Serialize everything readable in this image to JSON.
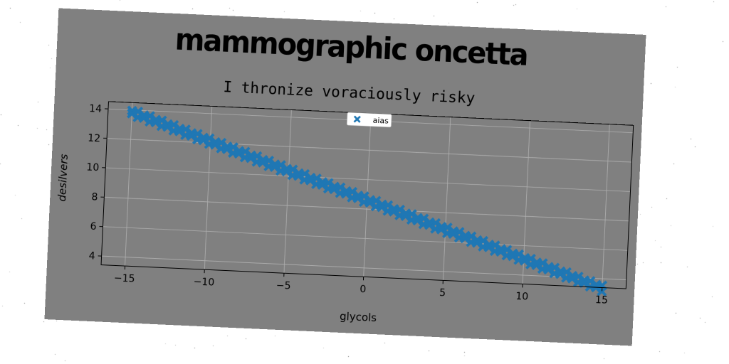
{
  "chart_data": {
    "type": "scatter",
    "title": "mammographic oncetta",
    "subtitle": "I thronize voraciously risky",
    "xlabel": "glycols",
    "ylabel": "desilvers",
    "xlim": [
      -16.5,
      16.5
    ],
    "ylim": [
      3.4,
      14.5
    ],
    "xticks": [
      -15,
      -10,
      -5,
      0,
      5,
      10,
      15
    ],
    "yticks": [
      4,
      6,
      8,
      10,
      12,
      14
    ],
    "grid": true,
    "legend_position": "top-center",
    "series": [
      {
        "name": "aias",
        "marker": "X",
        "color": "#1f77b4",
        "x_start": -15,
        "x_end": 15,
        "count": 80,
        "slope": -0.35,
        "intercept": 8.6,
        "wiggle": 0.2
      }
    ]
  }
}
